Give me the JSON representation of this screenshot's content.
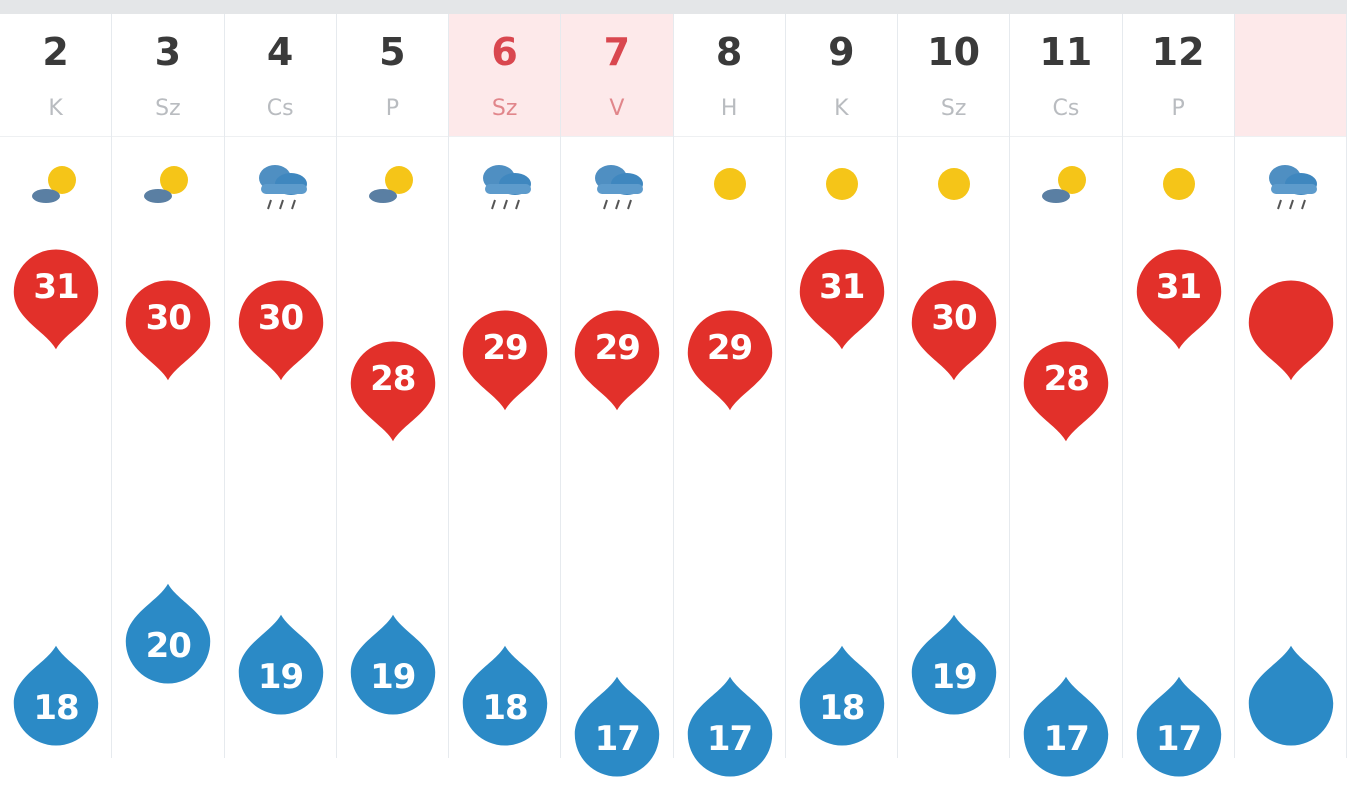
{
  "colors": {
    "high": "#e2302a",
    "low": "#2b8ac6",
    "weekend_bg": "#fde9ea",
    "weekend_text": "#d9474f",
    "sun": "#f5c518",
    "cloud": "#3f87bf"
  },
  "unit": "°C",
  "days": [
    {
      "day": "2",
      "name": "K",
      "icon": "partly-cloudy-icon",
      "high": "31",
      "low": "18",
      "weekend": false
    },
    {
      "day": "3",
      "name": "Sz",
      "icon": "partly-cloudy-icon",
      "high": "30",
      "low": "20",
      "weekend": false
    },
    {
      "day": "4",
      "name": "Cs",
      "icon": "rain-icon",
      "high": "30",
      "low": "19",
      "weekend": false
    },
    {
      "day": "5",
      "name": "P",
      "icon": "partly-cloudy-icon",
      "high": "28",
      "low": "19",
      "weekend": false
    },
    {
      "day": "6",
      "name": "Sz",
      "icon": "rain-icon",
      "high": "29",
      "low": "18",
      "weekend": true
    },
    {
      "day": "7",
      "name": "V",
      "icon": "rain-icon",
      "high": "29",
      "low": "17",
      "weekend": true
    },
    {
      "day": "8",
      "name": "H",
      "icon": "sun-icon",
      "high": "29",
      "low": "17",
      "weekend": false
    },
    {
      "day": "9",
      "name": "K",
      "icon": "sun-icon",
      "high": "31",
      "low": "18",
      "weekend": false
    },
    {
      "day": "10",
      "name": "Sz",
      "icon": "sun-icon",
      "high": "30",
      "low": "19",
      "weekend": false
    },
    {
      "day": "11",
      "name": "Cs",
      "icon": "partly-cloudy-icon",
      "high": "28",
      "low": "17",
      "weekend": false
    },
    {
      "day": "12",
      "name": "P",
      "icon": "sun-icon",
      "high": "31",
      "low": "17",
      "weekend": false
    }
  ]
}
